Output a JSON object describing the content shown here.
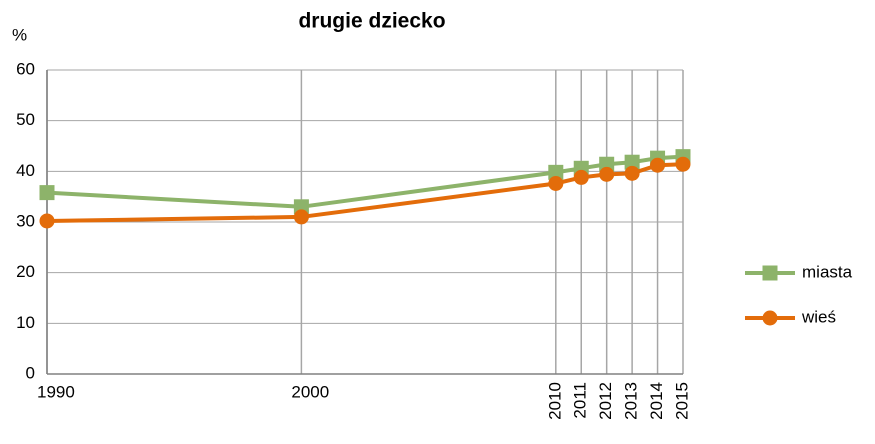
{
  "chart_data": {
    "type": "line",
    "title": "drugie dziecko",
    "y_label": "%",
    "x": [
      1990,
      2000,
      2010,
      2011,
      2012,
      2013,
      2014,
      2015
    ],
    "series": [
      {
        "name": "miasta",
        "color": "#8db36a",
        "marker": "square",
        "values": [
          35.8,
          33.0,
          39.8,
          40.6,
          41.4,
          41.8,
          42.6,
          42.9
        ]
      },
      {
        "name": "wieś",
        "color": "#e36c0a",
        "marker": "circle",
        "values": [
          30.2,
          31.0,
          37.6,
          38.8,
          39.4,
          39.6,
          41.2,
          41.4
        ]
      }
    ],
    "xlim": [
      1990,
      2015
    ],
    "xticks": [
      1990,
      2000,
      2010,
      2011,
      2012,
      2013,
      2014,
      2015
    ],
    "ylim": [
      0,
      60
    ],
    "yticks": [
      0,
      10,
      20,
      30,
      40,
      50,
      60
    ],
    "grid": true,
    "legend": "right"
  }
}
